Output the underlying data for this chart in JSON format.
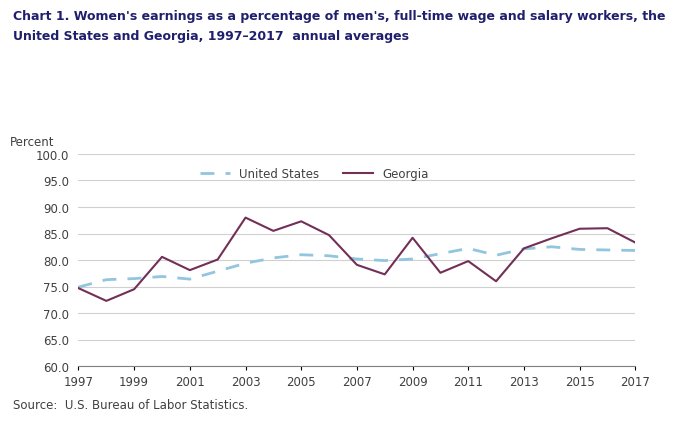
{
  "title_line1": "Chart 1. Women's earnings as a percentage of men's, full-time wage and salary workers, the",
  "title_line2": "United States and Georgia, 1997–2017  annual averages",
  "percent_label": "Percent",
  "source": "Source:  U.S. Bureau of Labor Statistics.",
  "years": [
    1997,
    1998,
    1999,
    2000,
    2001,
    2002,
    2003,
    2004,
    2005,
    2006,
    2007,
    2008,
    2009,
    2010,
    2011,
    2012,
    2013,
    2014,
    2015,
    2016,
    2017
  ],
  "us_data": [
    74.9,
    76.3,
    76.5,
    76.9,
    76.4,
    77.9,
    79.4,
    80.4,
    81.0,
    80.8,
    80.2,
    79.9,
    80.2,
    81.2,
    82.2,
    80.9,
    82.1,
    82.5,
    82.0,
    81.9,
    81.8
  ],
  "ga_data": [
    74.7,
    72.3,
    74.5,
    80.6,
    78.1,
    80.1,
    88.0,
    85.5,
    87.3,
    84.7,
    79.1,
    77.3,
    84.2,
    77.6,
    79.8,
    76.0,
    82.2,
    84.1,
    85.9,
    86.0,
    83.3
  ],
  "us_color": "#92C5DE",
  "ga_color": "#722F57",
  "ylim_min": 60.0,
  "ylim_max": 100.0,
  "bg_color": "#FFFFFF",
  "plot_bg_color": "#FFFFFF",
  "grid_color": "#D0D0D0",
  "text_color": "#404040",
  "title_color": "#1F1F6E",
  "us_label": "United States",
  "ga_label": "Georgia",
  "xticks": [
    1997,
    1999,
    2001,
    2003,
    2005,
    2007,
    2009,
    2011,
    2013,
    2015,
    2017
  ]
}
